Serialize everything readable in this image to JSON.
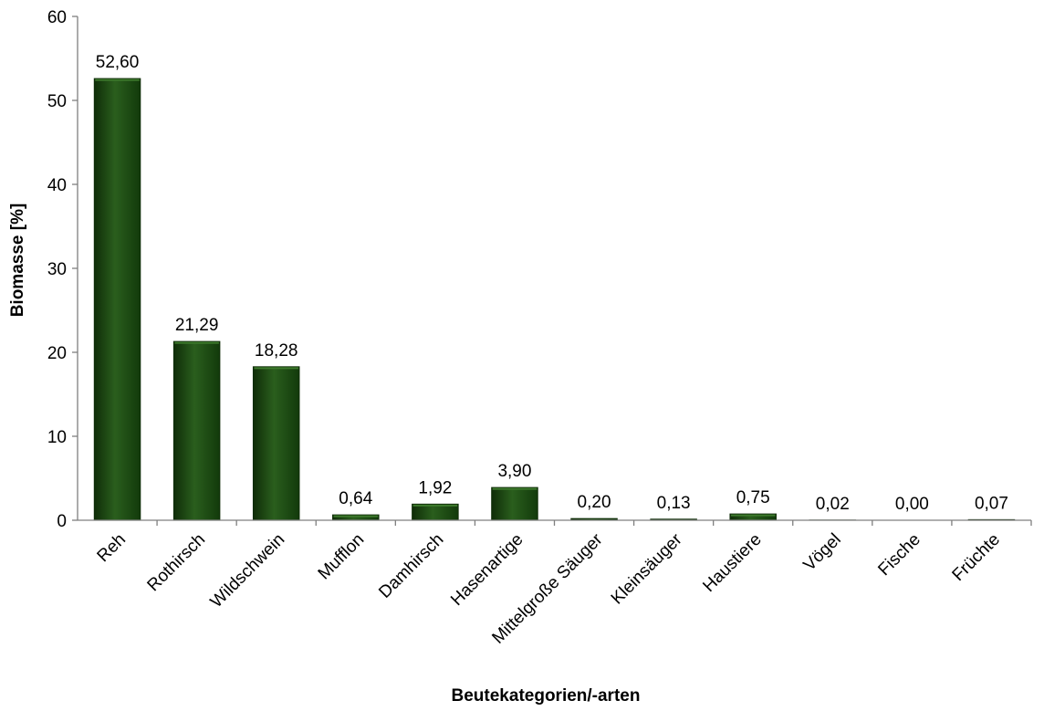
{
  "chart_data": {
    "type": "bar",
    "title": "",
    "xlabel": "Beutekategorien/-arten",
    "ylabel": "Biomasse [%]",
    "ylim": [
      0,
      60
    ],
    "yticks": [
      "0",
      "10",
      "20",
      "30",
      "40",
      "50",
      "60"
    ],
    "grid": false,
    "legend": "none",
    "categories": [
      "Reh",
      "Rothirsch",
      "Wildschwein",
      "Mufflon",
      "Damhirsch",
      "Hasenartige",
      "Mittelgroße Säuger",
      "Kleinsäuger",
      "Haustiere",
      "Vögel",
      "Fische",
      "Früchte"
    ],
    "values": [
      52.6,
      21.29,
      18.28,
      0.64,
      1.92,
      3.9,
      0.2,
      0.13,
      0.75,
      0.02,
      0.0,
      0.07
    ],
    "value_labels": [
      "52,60",
      "21,29",
      "18,28",
      "0,64",
      "1,92",
      "3,90",
      "0,20",
      "0,13",
      "0,75",
      "0,02",
      "0,00",
      "0,07"
    ],
    "colors": {
      "bar": "#1f4d14",
      "bar_dark": "#0f2d08",
      "bar_light": "#3d7a2c",
      "axis": "#7f7f7f"
    }
  }
}
